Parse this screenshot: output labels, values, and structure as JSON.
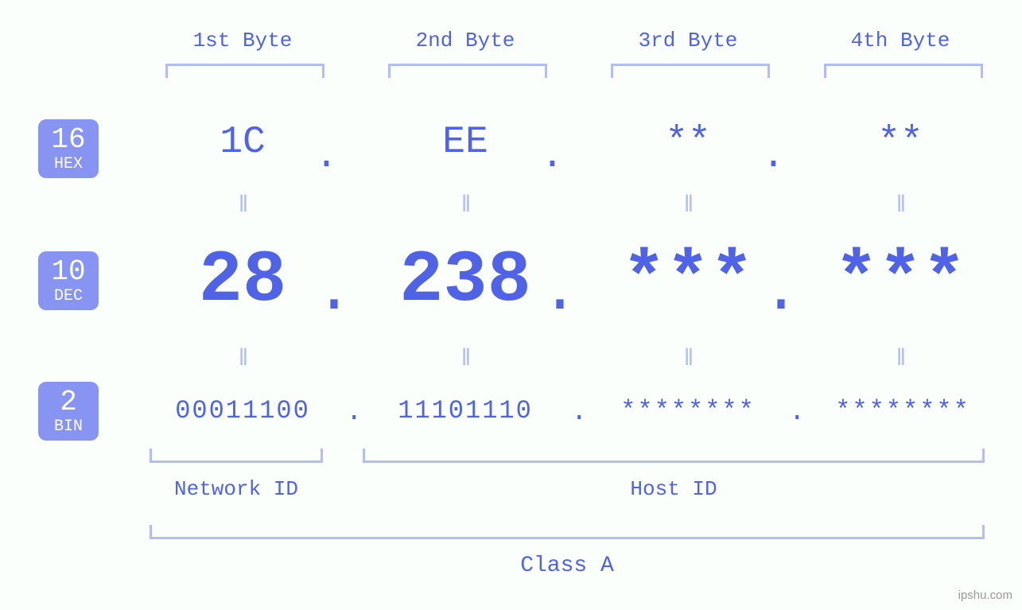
{
  "type": "ip-representation-diagram",
  "colors": {
    "background": "#fafffc",
    "text_strong": "#5062e6",
    "text_light": "#b3bcf4",
    "badge_bg": "#8794f2",
    "badge_fg": "#ffffff"
  },
  "byte_headers": [
    "1st Byte",
    "2nd Byte",
    "3rd Byte",
    "4th Byte"
  ],
  "badges": {
    "hex": {
      "base": "16",
      "label": "HEX"
    },
    "dec": {
      "base": "10",
      "label": "DEC"
    },
    "bin": {
      "base": "2",
      "label": "BIN"
    }
  },
  "hex": [
    "1C",
    "EE",
    "**",
    "**"
  ],
  "dec": [
    "28",
    "238",
    "***",
    "***"
  ],
  "bin": [
    "00011100",
    "11101110",
    "********",
    "********"
  ],
  "dots": ".",
  "equals": "ǁ",
  "bottom": {
    "network": "Network ID",
    "host": "Host ID",
    "class": "Class A"
  },
  "watermark": "ipshu.com",
  "fonts": {
    "header_size_pt": 20,
    "hex_size_pt": 36,
    "dec_size_pt": 70,
    "bin_size_pt": 24,
    "badge_num_pt": 27,
    "badge_lab_pt": 15
  }
}
